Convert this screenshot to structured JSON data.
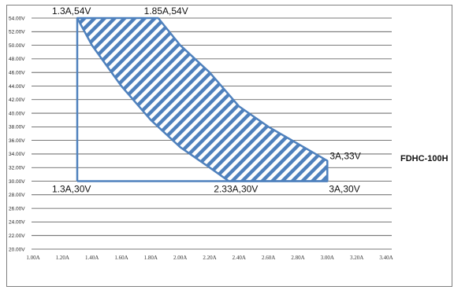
{
  "chart_data": {
    "type": "area",
    "y_ticks": [
      "54.00V",
      "52.00V",
      "50.00V",
      "48.00V",
      "46.00V",
      "44.00V",
      "42.00V",
      "40.00V",
      "38.00V",
      "36.00V",
      "34.00V",
      "32.00V",
      "30.00V",
      "28.00V",
      "26.00V",
      "24.00V",
      "22.00V",
      "20.00V"
    ],
    "x_ticks": [
      "1.00A",
      "1.20A",
      "1.40A",
      "1.60A",
      "1.80A",
      "2.00A",
      "2.20A",
      "2.40A",
      "2.60A",
      "2.80A",
      "3.00A",
      "3.20A",
      "3.40A"
    ],
    "xlim": [
      1.0,
      3.4
    ],
    "ylim": [
      20,
      55
    ],
    "grid": true,
    "region": [
      {
        "x": 1.3,
        "y": 54
      },
      {
        "x": 1.85,
        "y": 54
      },
      {
        "x": 2.0,
        "y": 50
      },
      {
        "x": 2.2,
        "y": 46
      },
      {
        "x": 2.4,
        "y": 41
      },
      {
        "x": 2.6,
        "y": 38
      },
      {
        "x": 2.8,
        "y": 35.5
      },
      {
        "x": 3.0,
        "y": 33
      },
      {
        "x": 3.0,
        "y": 30
      },
      {
        "x": 2.33,
        "y": 30
      },
      {
        "x": 2.2,
        "y": 32
      },
      {
        "x": 2.0,
        "y": 35
      },
      {
        "x": 1.8,
        "y": 39
      },
      {
        "x": 1.6,
        "y": 44
      },
      {
        "x": 1.4,
        "y": 50
      },
      {
        "x": 1.3,
        "y": 54
      }
    ],
    "left_edge": [
      {
        "x": 1.3,
        "y": 54
      },
      {
        "x": 1.3,
        "y": 30
      }
    ],
    "bottom_edge": [
      {
        "x": 1.3,
        "y": 30
      },
      {
        "x": 3.0,
        "y": 30
      }
    ],
    "annotations": [
      {
        "text": "1.3A,54V",
        "x": 1.3,
        "y": 54
      },
      {
        "text": "1.85A,54V",
        "x": 1.85,
        "y": 54
      },
      {
        "text": "3A,33V",
        "x": 3.0,
        "y": 33
      },
      {
        "text": "1.3A,30V",
        "x": 1.3,
        "y": 30
      },
      {
        "text": "2.33A,30V",
        "x": 2.33,
        "y": 30
      },
      {
        "text": "3A,30V",
        "x": 3.0,
        "y": 30
      }
    ],
    "model_label": "FDHC-100H",
    "colors": {
      "line": "#4f81bd",
      "grid": "#4d4d4d"
    }
  }
}
